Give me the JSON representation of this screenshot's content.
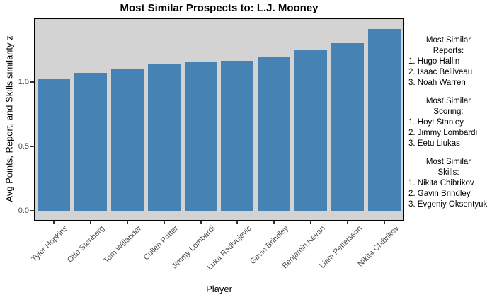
{
  "chart_data": {
    "type": "bar",
    "title": "Most Similar Prospects to: L.J. Mooney",
    "xlabel": "Player",
    "ylabel": "Avg Points, Report, and Skills similarity z",
    "categories": [
      "Tyler Hopkins",
      "Otto Stenberg",
      "Tom Willander",
      "Cullen Potter",
      "Jimmy Lombardi",
      "Luka Radivojevic",
      "Gavin Brindley",
      "Benjamin Kevan",
      "Liam Pettersson",
      "Nikita Chibrikov"
    ],
    "values": [
      1.02,
      1.07,
      1.1,
      1.14,
      1.155,
      1.165,
      1.19,
      1.25,
      1.3,
      1.41
    ],
    "yticks": [
      "0.0",
      "0.5",
      "1.0"
    ],
    "ylim": [
      -0.07,
      1.49
    ],
    "grid": false,
    "legend": "none",
    "bar_color": "#4682b4",
    "panel_bg": "#d3d3d3",
    "panel_border": "#000000",
    "tick_label_color": "#4d4d4d"
  },
  "annotations": {
    "blocks": [
      {
        "header1": "Most Similar",
        "header2": "Reports:",
        "items": [
          "1. Hugo Hallin",
          "2. Isaac Belliveau",
          "3. Noah Warren"
        ]
      },
      {
        "header1": "Most Similar",
        "header2": "Scoring:",
        "items": [
          "1. Hoyt Stanley",
          "2. Jimmy Lombardi",
          "3. Eetu Liukas"
        ]
      },
      {
        "header1": "Most Similar",
        "header2": "Skills:",
        "items": [
          "1. Nikita Chibrikov",
          "2. Gavin Brindley",
          "3. Evgeniy Oksentyuk"
        ]
      }
    ]
  }
}
